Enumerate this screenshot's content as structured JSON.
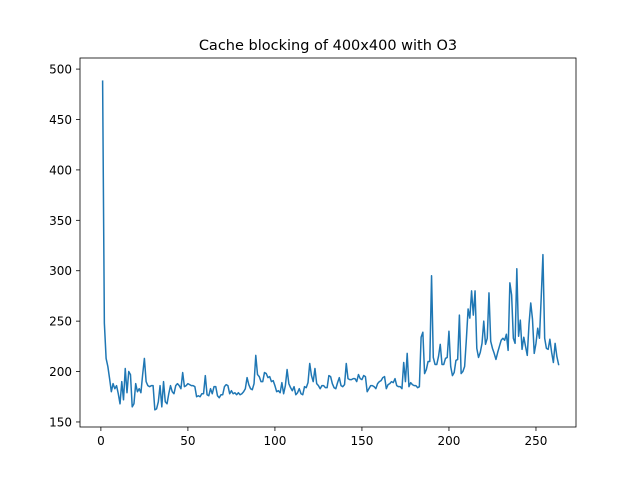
{
  "chart_data": {
    "type": "line",
    "title": "Cache blocking of 400x400 with O3",
    "xlabel": "",
    "ylabel": "",
    "xlim": [
      -12,
      273
    ],
    "ylim": [
      145,
      511
    ],
    "grid": false,
    "legend": "none",
    "x_ticks": [
      0,
      50,
      100,
      150,
      200,
      250
    ],
    "y_ticks": [
      150,
      200,
      250,
      300,
      350,
      400,
      450,
      500
    ],
    "x_tick_labels": [
      "0",
      "50",
      "100",
      "150",
      "200",
      "250"
    ],
    "y_tick_labels": [
      "150",
      "200",
      "250",
      "300",
      "350",
      "400",
      "450",
      "500"
    ],
    "line_color": "#1f77b4",
    "series": [
      {
        "x_start": 1,
        "x_step": 1,
        "values": [
          488,
          248,
          213,
          205,
          193,
          180,
          188,
          183,
          186,
          178,
          168,
          190,
          172,
          203,
          179,
          200,
          197,
          165,
          168,
          188,
          180,
          183,
          179,
          197,
          213,
          190,
          186,
          185,
          186,
          186,
          162,
          163,
          170,
          186,
          165,
          190,
          170,
          168,
          178,
          186,
          180,
          178,
          186,
          188,
          186,
          183,
          199,
          185,
          186,
          188,
          187,
          186,
          186,
          185,
          175,
          176,
          175,
          178,
          178,
          196,
          177,
          176,
          183,
          178,
          185,
          185,
          176,
          174,
          177,
          177,
          185,
          187,
          186,
          178,
          181,
          178,
          179,
          177,
          179,
          177,
          178,
          180,
          183,
          194,
          187,
          183,
          182,
          188,
          216,
          197,
          195,
          190,
          190,
          199,
          198,
          194,
          195,
          190,
          191,
          186,
          180,
          181,
          179,
          189,
          178,
          186,
          202,
          188,
          184,
          181,
          185,
          177,
          179,
          183,
          178,
          177,
          185,
          184,
          189,
          208,
          196,
          190,
          203,
          188,
          186,
          183,
          186,
          186,
          184,
          184,
          196,
          195,
          188,
          184,
          183,
          189,
          194,
          186,
          185,
          187,
          208,
          193,
          192,
          192,
          193,
          193,
          190,
          197,
          193,
          192,
          196,
          195,
          180,
          183,
          186,
          186,
          185,
          183,
          188,
          190,
          191,
          194,
          195,
          183,
          187,
          188,
          190,
          189,
          193,
          186,
          185,
          185,
          183,
          209,
          190,
          218,
          185,
          189,
          187,
          186,
          186,
          184,
          185,
          234,
          239,
          198,
          202,
          210,
          210,
          295,
          214,
          207,
          207,
          215,
          227,
          207,
          207,
          213,
          214,
          240,
          205,
          196,
          199,
          211,
          212,
          256,
          198,
          200,
          205,
          232,
          262,
          253,
          280,
          256,
          280,
          223,
          214,
          219,
          228,
          250,
          227,
          233,
          278,
          230,
          223,
          218,
          212,
          219,
          225,
          231,
          233,
          231,
          237,
          221,
          288,
          276,
          233,
          228,
          302,
          235,
          251,
          222,
          234,
          225,
          216,
          247,
          268,
          252,
          218,
          228,
          243,
          233,
          273,
          316,
          233,
          223,
          222,
          232,
          219,
          209,
          228,
          215,
          207
        ]
      }
    ]
  }
}
